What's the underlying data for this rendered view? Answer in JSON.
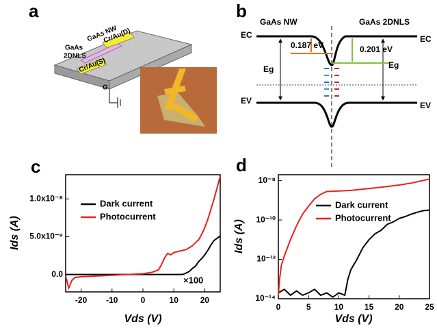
{
  "panel_a": {
    "label": "a",
    "texts": [
      "GaAs",
      "2DNLS",
      "GaAs NW",
      "Cr/Au(D)",
      "Cr/Au(S)",
      "G"
    ]
  },
  "panel_b": {
    "label": "b",
    "left_title": "GaAs NW",
    "right_title": "GaAs 2DNLS",
    "ec_left": "EC",
    "ec_right": "EC",
    "ev_left": "EV",
    "ev_right": "EV",
    "eg_left": "Eg",
    "eg_right": "Eg",
    "barrier_left": "0.187 eV",
    "barrier_right": "0.201 eV"
  },
  "chart_data": [
    {
      "type": "line",
      "panel_label": "c",
      "xlabel": "Vds (V)",
      "ylabel": "Ids (A)",
      "annotation": "×100",
      "xlim": [
        -25,
        25
      ],
      "xticks": [
        -20,
        -10,
        0,
        10,
        20
      ],
      "ylim": [
        -2.3e-09,
        1.32e-08
      ],
      "yticks": [
        {
          "value": 0,
          "label": "0.0"
        },
        {
          "value": 5e-09,
          "label": "5.0x10⁻⁹"
        },
        {
          "value": 1e-08,
          "label": "1.0x10⁻⁸"
        }
      ],
      "series": [
        {
          "name": "Dark current",
          "color": "#000000",
          "x": [
            -25,
            0,
            12,
            13,
            14,
            15,
            16,
            17,
            18,
            19,
            20,
            21,
            22,
            23,
            24,
            25
          ],
          "values": [
            0,
            0,
            0,
            2e-11,
            2e-10,
            4e-10,
            8e-10,
            1.1e-09,
            1.7e-09,
            2.1e-09,
            2.6e-09,
            3.2e-09,
            3.9e-09,
            4.5e-09,
            4.8e-09,
            5.1e-09
          ]
        },
        {
          "name": "Photocurrent",
          "color": "#e8201d",
          "x": [
            -25,
            -24,
            -23,
            -22,
            -20,
            -10,
            0,
            3,
            5,
            6,
            7,
            8,
            9,
            10,
            12,
            14,
            16,
            17,
            18,
            19,
            20,
            21,
            22,
            23,
            24,
            25
          ],
          "values": [
            -2e-10,
            -1.8e-09,
            -8e-10,
            -4e-10,
            -3e-10,
            -1e-10,
            1e-10,
            3e-10,
            6e-10,
            1.3e-09,
            2.2e-09,
            2.8e-09,
            2.6e-09,
            2.9e-09,
            3.1e-09,
            3.3e-09,
            3.8e-09,
            4.2e-09,
            4.6e-09,
            5.3e-09,
            6.2e-09,
            7.3e-09,
            8.6e-09,
            1e-08,
            1.15e-08,
            1.3e-08
          ]
        }
      ]
    },
    {
      "type": "line",
      "panel_label": "d",
      "xlabel": "Vds (V)",
      "ylabel": "Ids (A)",
      "log_y": true,
      "xlim": [
        0,
        25
      ],
      "xticks": [
        0,
        5,
        10,
        15,
        20,
        25
      ],
      "ylim": [
        1e-14,
        2e-08
      ],
      "yticks": [
        {
          "value": 1e-14,
          "label": "10⁻¹⁴"
        },
        {
          "value": 1e-12,
          "label": "10⁻¹²"
        },
        {
          "value": 1e-10,
          "label": "10⁻¹⁰"
        },
        {
          "value": 1e-08,
          "label": "10⁻⁸"
        }
      ],
      "series": [
        {
          "name": "Dark current",
          "color": "#000000",
          "x": [
            0,
            1,
            2,
            3,
            4,
            5,
            6,
            7,
            8,
            9,
            10,
            11,
            11.5,
            12,
            13,
            14,
            15,
            16,
            17,
            18,
            19,
            20,
            21,
            22,
            23,
            24,
            25
          ],
          "values": [
            2e-14,
            3e-14,
            1.5e-14,
            2.5e-14,
            1.5e-14,
            2e-14,
            3e-14,
            1.5e-14,
            2e-14,
            1.2e-14,
            2e-14,
            1.5e-14,
            1e-13,
            3e-13,
            1e-12,
            4e-12,
            1e-11,
            2e-11,
            3e-11,
            6e-11,
            8e-11,
            1.2e-10,
            1.5e-10,
            2e-10,
            2.5e-10,
            3e-10,
            3.2e-10
          ]
        },
        {
          "name": "Photocurrent",
          "color": "#e8201d",
          "x": [
            0,
            0.2,
            0.5,
            1,
            2,
            3,
            4,
            5,
            6,
            7,
            8,
            10,
            12,
            15,
            18,
            20,
            22,
            25
          ],
          "values": [
            1.5e-14,
            1e-13,
            5e-13,
            1.5e-12,
            1e-11,
            5e-11,
            2e-10,
            5e-10,
            1.2e-09,
            2e-09,
            2.8e-09,
            3e-09,
            3.2e-09,
            4e-09,
            5e-09,
            6e-09,
            7.5e-09,
            1.2e-08
          ]
        }
      ]
    }
  ]
}
